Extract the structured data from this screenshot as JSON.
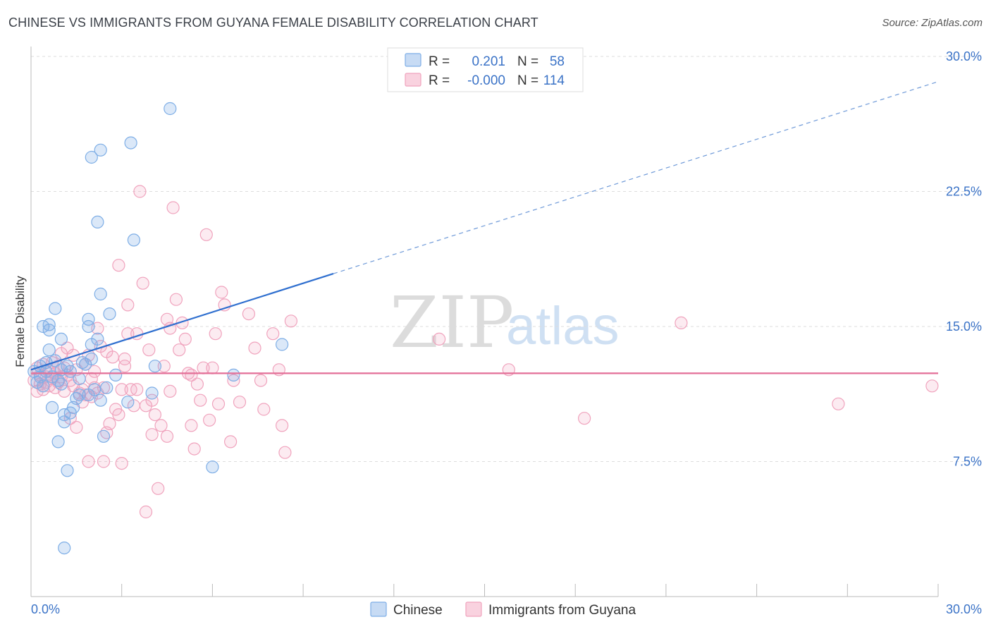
{
  "header": {
    "title": "CHINESE VS IMMIGRANTS FROM GUYANA FEMALE DISABILITY CORRELATION CHART",
    "source": "Source: ZipAtlas.com"
  },
  "watermark": {
    "zip": "ZIP",
    "atlas": "atlas"
  },
  "legend_box": {
    "rows": [
      {
        "r_label": "R =",
        "r_value": "0.201",
        "n_label": "N =",
        "n_value": "58",
        "color": "#7eaee6"
      },
      {
        "r_label": "R =",
        "r_value": "-0.000",
        "n_label": "N =",
        "n_value": "114",
        "color": "#f0a3bd"
      }
    ]
  },
  "bottom_legend": {
    "items": [
      {
        "label": "Chinese",
        "color": "#7eaee6"
      },
      {
        "label": "Immigrants from Guyana",
        "color": "#f0a3bd"
      }
    ]
  },
  "chart_data": {
    "type": "scatter",
    "title": "CHINESE VS IMMIGRANTS FROM GUYANA FEMALE DISABILITY CORRELATION CHART",
    "xlabel": "",
    "ylabel": "Female Disability",
    "xlim": [
      0,
      30
    ],
    "ylim": [
      0,
      30
    ],
    "x_tick_labels": [
      "0.0%",
      "30.0%"
    ],
    "y_tick_labels": [
      "7.5%",
      "15.0%",
      "22.5%",
      "30.0%"
    ],
    "y_ticks": [
      7.5,
      15.0,
      22.5,
      30.0
    ],
    "grid": "horizontal dashed",
    "legend_position": "top-center",
    "series": [
      {
        "name": "Chinese",
        "color": "#7eaee6",
        "trend": {
          "x": [
            0.0,
            30.0
          ],
          "y": [
            12.6,
            28.6
          ],
          "solid_until_x": 10.0
        },
        "points": [
          [
            0.1,
            12.5
          ],
          [
            0.2,
            11.9
          ],
          [
            0.3,
            12.8
          ],
          [
            0.3,
            12.2
          ],
          [
            0.4,
            15.0
          ],
          [
            0.5,
            13.0
          ],
          [
            0.5,
            12.5
          ],
          [
            0.6,
            15.1
          ],
          [
            0.6,
            13.7
          ],
          [
            0.6,
            14.8
          ],
          [
            0.7,
            10.5
          ],
          [
            0.7,
            12.2
          ],
          [
            0.8,
            16.0
          ],
          [
            0.9,
            12.0
          ],
          [
            0.9,
            8.6
          ],
          [
            1.0,
            12.6
          ],
          [
            1.0,
            11.8
          ],
          [
            1.0,
            14.3
          ],
          [
            1.1,
            10.1
          ],
          [
            1.1,
            9.7
          ],
          [
            1.1,
            2.7
          ],
          [
            1.2,
            12.8
          ],
          [
            1.2,
            7.0
          ],
          [
            1.3,
            10.2
          ],
          [
            1.4,
            10.5
          ],
          [
            1.5,
            11.0
          ],
          [
            1.6,
            11.2
          ],
          [
            1.7,
            13.0
          ],
          [
            1.8,
            12.9
          ],
          [
            1.9,
            11.2
          ],
          [
            1.9,
            15.0
          ],
          [
            1.9,
            15.4
          ],
          [
            2.0,
            14.0
          ],
          [
            2.2,
            14.3
          ],
          [
            2.3,
            10.9
          ],
          [
            2.4,
            8.9
          ],
          [
            2.5,
            11.6
          ],
          [
            2.8,
            12.3
          ],
          [
            2.0,
            13.2
          ],
          [
            2.1,
            11.5
          ],
          [
            2.0,
            24.4
          ],
          [
            2.3,
            24.8
          ],
          [
            2.2,
            20.8
          ],
          [
            2.3,
            16.8
          ],
          [
            2.6,
            15.7
          ],
          [
            3.2,
            10.8
          ],
          [
            3.3,
            25.2
          ],
          [
            3.4,
            19.8
          ],
          [
            4.0,
            11.3
          ],
          [
            4.1,
            12.8
          ],
          [
            4.6,
            27.1
          ],
          [
            6.0,
            7.2
          ],
          [
            6.7,
            12.3
          ],
          [
            8.3,
            14.0
          ],
          [
            0.4,
            11.7
          ],
          [
            0.8,
            13.1
          ],
          [
            1.3,
            12.5
          ],
          [
            1.6,
            12.1
          ]
        ]
      },
      {
        "name": "Immigrants from Guyana",
        "color": "#f0a3bd",
        "trend": {
          "x": [
            0.0,
            30.0
          ],
          "y": [
            12.4,
            12.4
          ]
        },
        "points": [
          [
            0.1,
            12.0
          ],
          [
            0.2,
            12.7
          ],
          [
            0.2,
            11.4
          ],
          [
            0.3,
            12.3
          ],
          [
            0.3,
            11.8
          ],
          [
            0.4,
            12.9
          ],
          [
            0.4,
            11.5
          ],
          [
            0.5,
            12.2
          ],
          [
            0.5,
            11.9
          ],
          [
            0.6,
            12.5
          ],
          [
            0.6,
            11.7
          ],
          [
            0.7,
            13.0
          ],
          [
            0.7,
            12.1
          ],
          [
            0.8,
            11.6
          ],
          [
            0.8,
            12.4
          ],
          [
            0.9,
            12.8
          ],
          [
            0.9,
            11.9
          ],
          [
            1.0,
            13.5
          ],
          [
            1.0,
            12.2
          ],
          [
            1.1,
            12.7
          ],
          [
            1.1,
            11.4
          ],
          [
            1.2,
            13.8
          ],
          [
            1.2,
            12.3
          ],
          [
            1.3,
            12.0
          ],
          [
            1.3,
            9.9
          ],
          [
            1.4,
            13.4
          ],
          [
            1.4,
            11.7
          ],
          [
            1.5,
            12.6
          ],
          [
            1.5,
            9.4
          ],
          [
            1.6,
            11.3
          ],
          [
            1.7,
            11.5
          ],
          [
            1.7,
            10.8
          ],
          [
            1.8,
            12.9
          ],
          [
            1.8,
            11.2
          ],
          [
            1.9,
            13.4
          ],
          [
            2.0,
            12.1
          ],
          [
            2.0,
            11.1
          ],
          [
            2.1,
            12.5
          ],
          [
            2.1,
            11.6
          ],
          [
            2.2,
            14.9
          ],
          [
            2.2,
            11.3
          ],
          [
            2.3,
            13.9
          ],
          [
            2.4,
            7.5
          ],
          [
            2.4,
            11.6
          ],
          [
            2.5,
            9.1
          ],
          [
            2.5,
            13.6
          ],
          [
            2.6,
            9.6
          ],
          [
            2.7,
            13.3
          ],
          [
            2.8,
            10.4
          ],
          [
            2.9,
            10.1
          ],
          [
            2.9,
            18.4
          ],
          [
            3.0,
            7.4
          ],
          [
            3.1,
            13.2
          ],
          [
            3.1,
            12.8
          ],
          [
            3.2,
            14.6
          ],
          [
            3.2,
            16.2
          ],
          [
            3.3,
            11.5
          ],
          [
            3.4,
            10.6
          ],
          [
            3.5,
            14.6
          ],
          [
            3.5,
            11.5
          ],
          [
            3.6,
            22.5
          ],
          [
            3.7,
            17.4
          ],
          [
            3.8,
            10.6
          ],
          [
            3.8,
            4.7
          ],
          [
            3.9,
            13.7
          ],
          [
            4.0,
            9.0
          ],
          [
            4.0,
            10.9
          ],
          [
            4.1,
            10.1
          ],
          [
            4.2,
            6.0
          ],
          [
            4.3,
            9.5
          ],
          [
            4.4,
            12.8
          ],
          [
            4.5,
            15.4
          ],
          [
            4.6,
            14.9
          ],
          [
            4.6,
            11.4
          ],
          [
            4.7,
            21.6
          ],
          [
            4.8,
            16.5
          ],
          [
            4.9,
            13.7
          ],
          [
            5.0,
            15.2
          ],
          [
            5.1,
            14.3
          ],
          [
            5.2,
            12.4
          ],
          [
            5.3,
            9.5
          ],
          [
            5.4,
            8.2
          ],
          [
            5.5,
            11.8
          ],
          [
            5.6,
            10.9
          ],
          [
            5.7,
            12.7
          ],
          [
            5.8,
            20.1
          ],
          [
            5.9,
            9.8
          ],
          [
            6.0,
            12.7
          ],
          [
            6.1,
            14.6
          ],
          [
            6.2,
            10.7
          ],
          [
            6.3,
            16.9
          ],
          [
            6.4,
            16.2
          ],
          [
            6.6,
            8.6
          ],
          [
            6.7,
            12.0
          ],
          [
            6.9,
            10.8
          ],
          [
            7.2,
            15.7
          ],
          [
            7.4,
            13.8
          ],
          [
            7.6,
            12.0
          ],
          [
            7.7,
            10.4
          ],
          [
            8.0,
            14.6
          ],
          [
            8.2,
            12.6
          ],
          [
            8.3,
            9.5
          ],
          [
            8.4,
            8.0
          ],
          [
            8.6,
            15.3
          ],
          [
            4.5,
            8.9
          ],
          [
            5.3,
            12.3
          ],
          [
            1.9,
            7.5
          ],
          [
            3.0,
            11.5
          ],
          [
            13.5,
            14.3
          ],
          [
            15.8,
            12.6
          ],
          [
            18.3,
            9.9
          ],
          [
            21.5,
            15.2
          ],
          [
            26.7,
            10.7
          ],
          [
            29.8,
            11.7
          ]
        ]
      }
    ]
  }
}
